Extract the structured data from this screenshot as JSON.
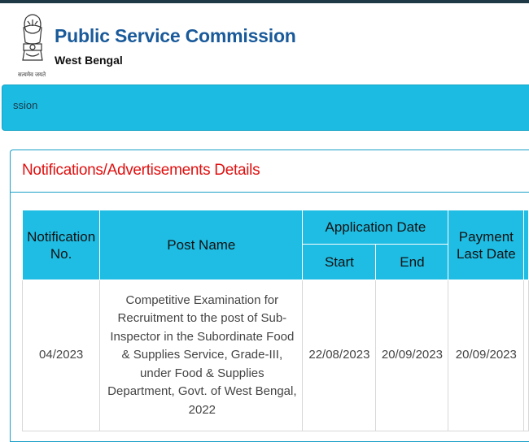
{
  "header": {
    "title": "Public Service Commission",
    "subtitle": "West Bengal",
    "emblem_caption": "सत्यमेव जयते"
  },
  "nav": {
    "text": "ssion"
  },
  "panel": {
    "title": "Notifications/Advertisements Details"
  },
  "table": {
    "headers": {
      "notification_no": "Notification No.",
      "post_name": "Post Name",
      "application_date": "Application Date",
      "start": "Start",
      "end": "End",
      "payment_last_date": "Payment Last Date"
    },
    "rows": [
      {
        "notification_no": "04/2023",
        "post_name": "Competitive Examination for Recruitment to the post of Sub-Inspector in the Subordinate Food & Supplies Service, Grade-III, under Food & Supplies Department, Govt. of West Bengal, 2022",
        "start": "22/08/2023",
        "end": "20/09/2023",
        "payment_last_date": "20/09/2023"
      }
    ]
  },
  "colors": {
    "accent": "#1fbde3",
    "title": "#1a5a9a",
    "alert": "#e01010"
  }
}
